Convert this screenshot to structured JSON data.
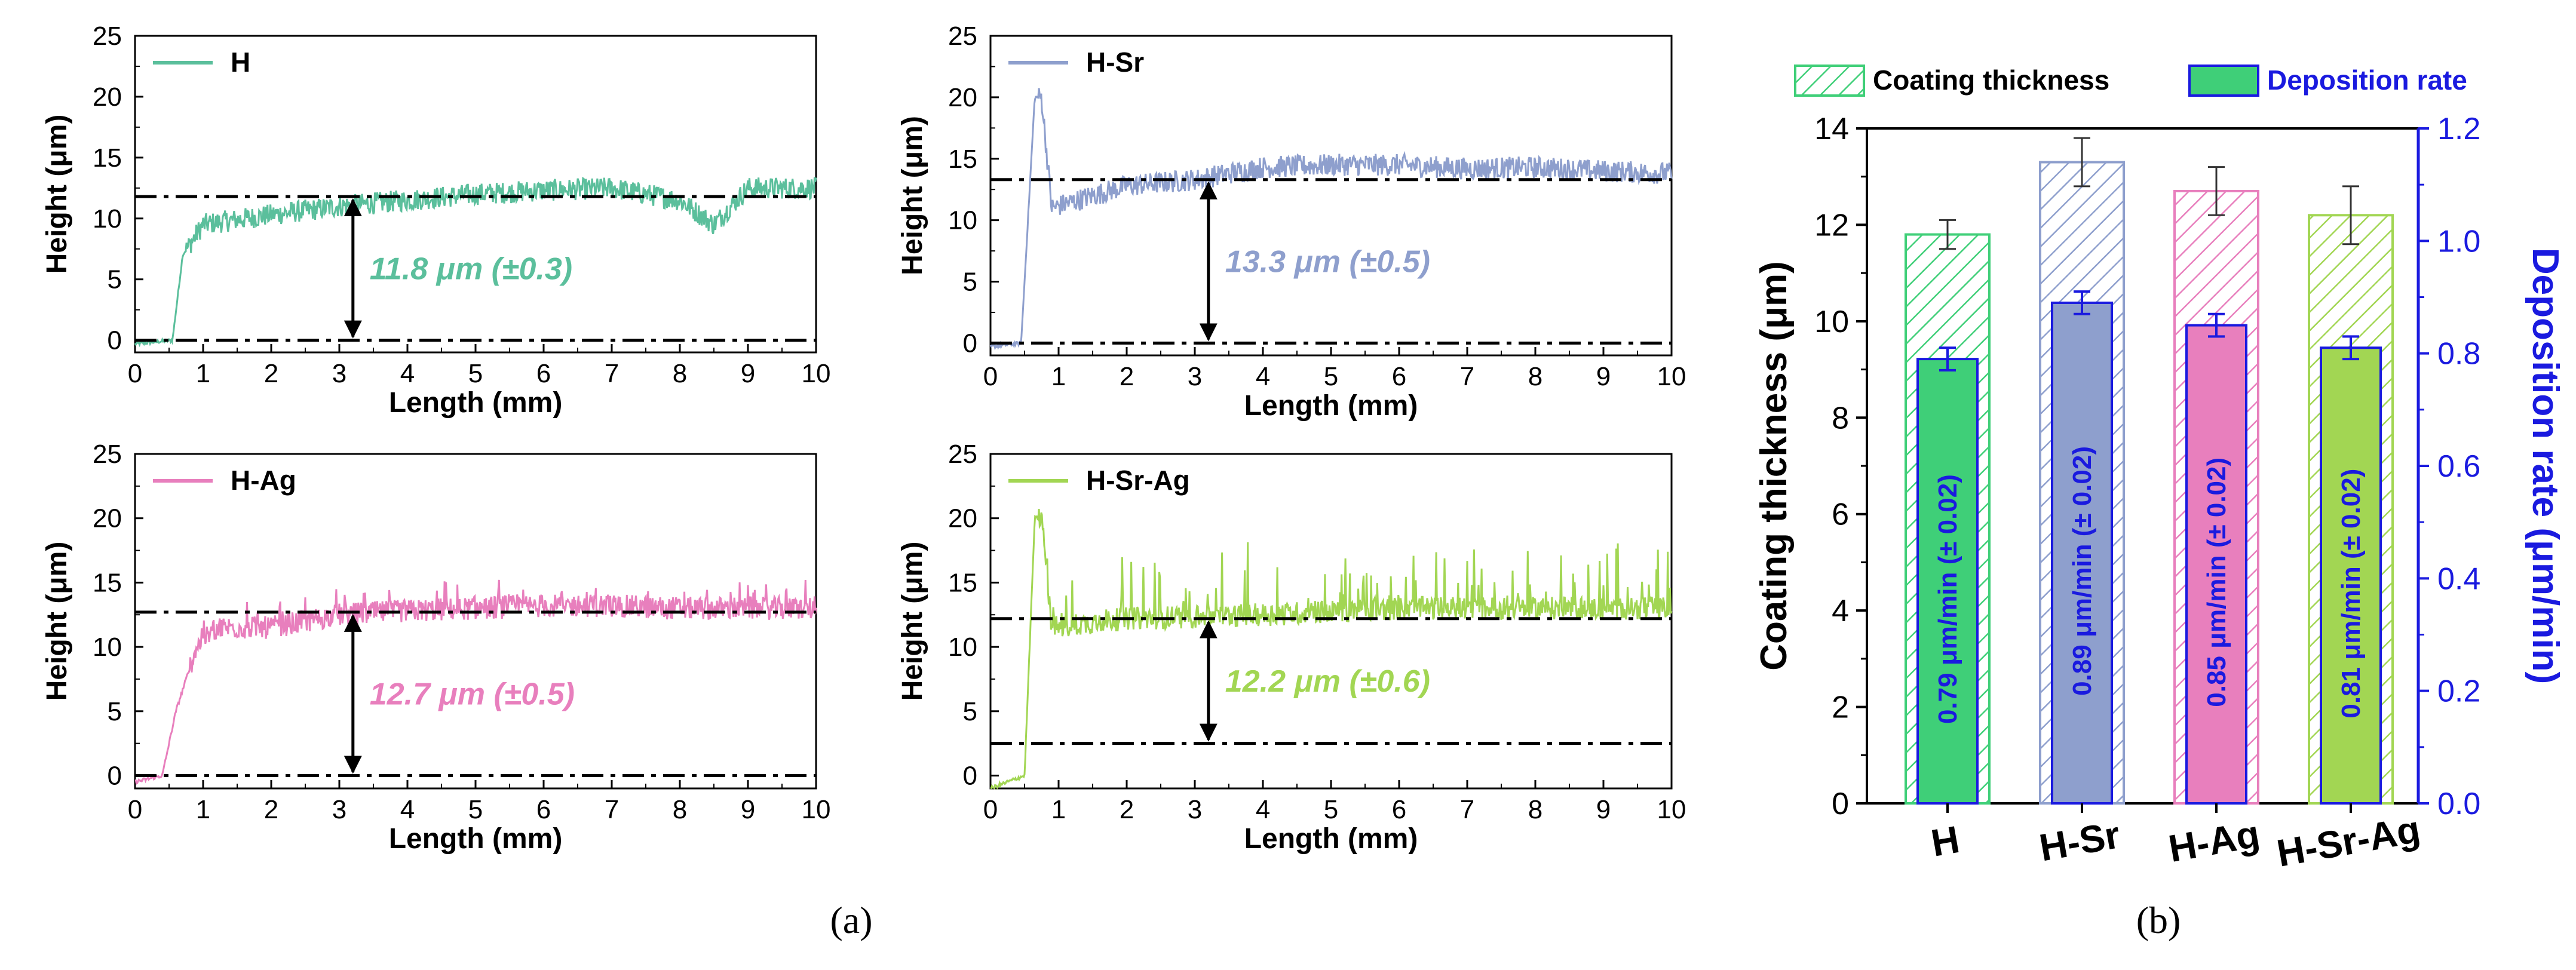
{
  "colors": {
    "H": "#5bbf9c",
    "H-Sr": "#8e9fcd",
    "H-Ag": "#e87fbd",
    "H-Sr-Ag": "#a2d653",
    "bar_H": "#3fcf78",
    "bar_H-Sr": "#8e9fcd",
    "bar_H-Ag": "#e87fbd",
    "bar_H-Sr-Ag": "#a2d653",
    "deposition_axis": "#1a1adf"
  },
  "panel_labels": {
    "a": "(a)",
    "b": "(b)"
  },
  "chart_data": [
    {
      "type": "line",
      "id": "H",
      "legend": "H",
      "xlabel": "Length (mm)",
      "ylabel": "Height (μm)",
      "xlim": [
        0,
        10
      ],
      "ylim": [
        -1,
        25
      ],
      "xticks": [
        0,
        1,
        2,
        3,
        4,
        5,
        6,
        7,
        8,
        9,
        10
      ],
      "yticks": [
        0,
        5,
        10,
        15,
        20,
        25
      ],
      "baseline": 0,
      "level": 11.8,
      "annotation": "11.8 μm (±0.3)",
      "profile": {
        "rise_start": 0.55,
        "rise_end": 0.75,
        "approx_points": [
          [
            0,
            -0.3
          ],
          [
            0.55,
            0
          ],
          [
            0.7,
            7
          ],
          [
            1,
            9.5
          ],
          [
            2,
            10.3
          ],
          [
            3,
            11
          ],
          [
            4,
            11.5
          ],
          [
            5,
            12
          ],
          [
            6,
            12.3
          ],
          [
            7,
            12.5
          ],
          [
            8,
            11.5
          ],
          [
            8.5,
            9.5
          ],
          [
            9,
            12.5
          ],
          [
            10,
            12.5
          ]
        ]
      }
    },
    {
      "type": "line",
      "id": "H-Sr",
      "legend": "H-Sr",
      "xlabel": "Length (mm)",
      "ylabel": "Height (μm)",
      "xlim": [
        0,
        10
      ],
      "ylim": [
        -1,
        25
      ],
      "xticks": [
        0,
        1,
        2,
        3,
        4,
        5,
        6,
        7,
        8,
        9,
        10
      ],
      "yticks": [
        0,
        5,
        10,
        15,
        20,
        25
      ],
      "baseline": 0,
      "level": 13.3,
      "annotation": "13.3 μm (±0.5)",
      "profile": {
        "rise_start": 0.45,
        "rise_end": 0.7,
        "approx_points": [
          [
            0,
            -0.3
          ],
          [
            0.45,
            0
          ],
          [
            0.65,
            20
          ],
          [
            0.75,
            20
          ],
          [
            0.9,
            11
          ],
          [
            1.5,
            12
          ],
          [
            2,
            12.8
          ],
          [
            3,
            13.3
          ],
          [
            4,
            14.3
          ],
          [
            5,
            14.5
          ],
          [
            6,
            14.5
          ],
          [
            7,
            14.2
          ],
          [
            8,
            14.3
          ],
          [
            9,
            14
          ],
          [
            10,
            13.8
          ]
        ]
      }
    },
    {
      "type": "line",
      "id": "H-Ag",
      "legend": "H-Ag",
      "xlabel": "Length (mm)",
      "ylabel": "Height (μm)",
      "xlim": [
        0,
        10
      ],
      "ylim": [
        -1,
        25
      ],
      "xticks": [
        0,
        1,
        2,
        3,
        4,
        5,
        6,
        7,
        8,
        9,
        10
      ],
      "yticks": [
        0,
        5,
        10,
        15,
        20,
        25
      ],
      "baseline": 0,
      "level": 12.7,
      "annotation": "12.7 μm (±0.5)",
      "profile": {
        "rise_start": 0.4,
        "rise_end": 0.8,
        "approx_points": [
          [
            0,
            -0.5
          ],
          [
            0.4,
            0
          ],
          [
            0.6,
            5
          ],
          [
            0.9,
            10
          ],
          [
            1.2,
            11.5
          ],
          [
            2,
            11.5
          ],
          [
            3,
            12.5
          ],
          [
            4,
            12.8
          ],
          [
            5,
            13
          ],
          [
            6,
            13.2
          ],
          [
            7,
            13.2
          ],
          [
            8,
            13
          ],
          [
            9,
            13
          ],
          [
            10,
            13
          ]
        ]
      }
    },
    {
      "type": "line",
      "id": "H-Sr-Ag",
      "legend": "H-Sr-Ag",
      "xlabel": "Length (mm)",
      "ylabel": "Height (μm)",
      "xlim": [
        0,
        10
      ],
      "ylim": [
        -1,
        25
      ],
      "xticks": [
        0,
        1,
        2,
        3,
        4,
        5,
        6,
        7,
        8,
        9,
        10
      ],
      "yticks": [
        0,
        5,
        10,
        15,
        20,
        25
      ],
      "baseline": 2.5,
      "level": 12.2,
      "annotation": "12.2 μm (±0.6)",
      "profile": {
        "rise_start": 0.5,
        "rise_end": 0.7,
        "approx_points": [
          [
            0,
            -1
          ],
          [
            0.5,
            0
          ],
          [
            0.65,
            20
          ],
          [
            0.75,
            20
          ],
          [
            0.9,
            11.5
          ],
          [
            2,
            12.2
          ],
          [
            4,
            12.5
          ],
          [
            6,
            13
          ],
          [
            8,
            13
          ],
          [
            10,
            13
          ]
        ]
      }
    },
    {
      "type": "bar",
      "id": "bars",
      "categories": [
        "H",
        "H-Sr",
        "H-Ag",
        "H-Sr-Ag"
      ],
      "series": [
        {
          "name": "Coating thickness",
          "axis": "left",
          "values": [
            11.8,
            13.3,
            12.7,
            12.2
          ],
          "errors": [
            0.3,
            0.5,
            0.5,
            0.6
          ]
        },
        {
          "name": "Deposition rate",
          "axis": "right",
          "values": [
            0.79,
            0.89,
            0.85,
            0.81
          ],
          "errors": [
            0.02,
            0.02,
            0.02,
            0.02
          ]
        }
      ],
      "bar_labels": [
        "0.79 μm/min (± 0.02)",
        "0.89 μm/min (± 0.02)",
        "0.85 μm/min (± 0.02)",
        "0.81 μm/min (± 0.02)"
      ],
      "ylabel": "Coating thickness (μm)",
      "y2label": "Deposition rate (μm/min)",
      "ylim": [
        0,
        14
      ],
      "y2lim": [
        0,
        1.2
      ],
      "yticks": [
        0,
        2,
        4,
        6,
        8,
        10,
        12,
        14
      ],
      "y2ticks": [
        "0.0",
        "0.2",
        "0.4",
        "0.6",
        "0.8",
        "1.0",
        "1.2"
      ]
    }
  ]
}
